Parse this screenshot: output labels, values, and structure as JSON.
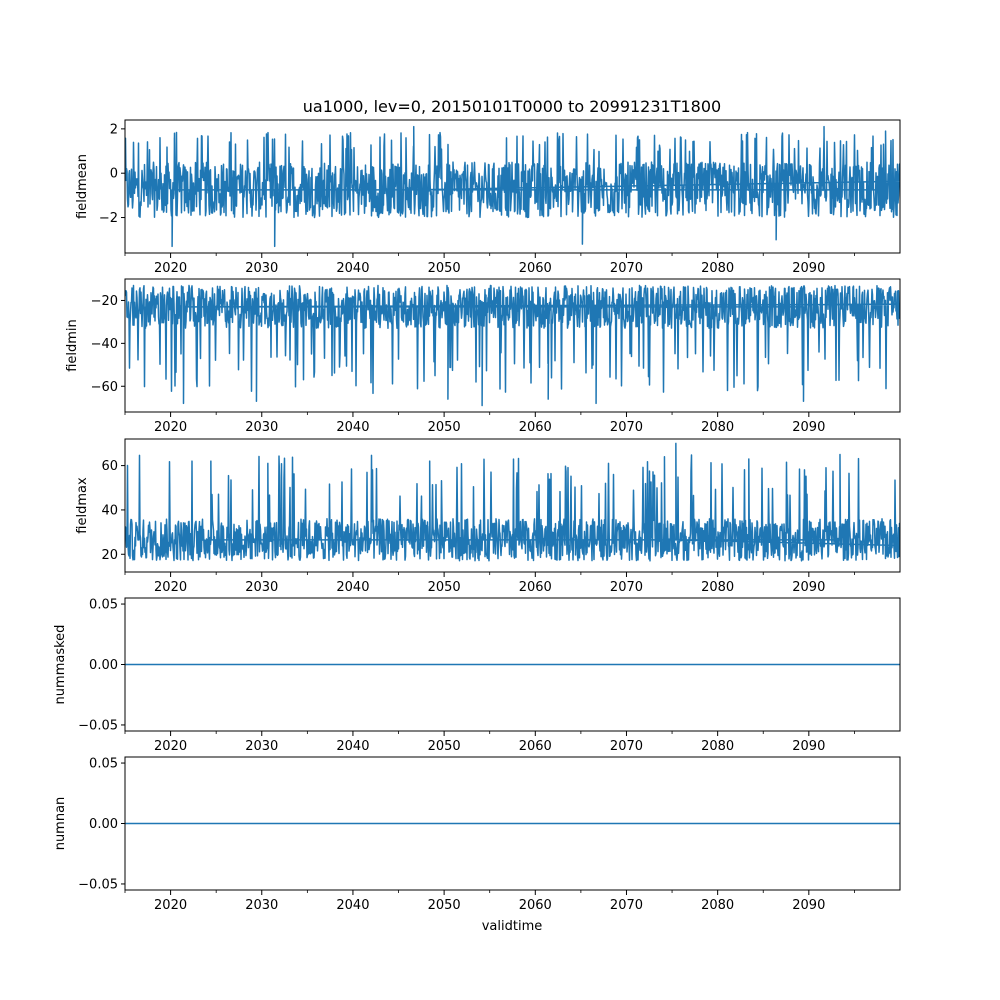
{
  "title": "ua1000, lev=0, 20150101T0000 to 20991231T1800",
  "xlabel": "validtime",
  "colors": {
    "series": "#1f77b4",
    "axes": "#000000",
    "background": "#ffffff"
  },
  "x_major_ticks": [
    "2020",
    "2030",
    "2040",
    "2050",
    "2060",
    "2070",
    "2080",
    "2090"
  ],
  "chart_data": [
    {
      "type": "line",
      "ylabel": "fieldmean",
      "xlim": [
        "2015-01-01T00:00",
        "2099-12-31T18:00"
      ],
      "ylim": [
        -3.6,
        2.4
      ],
      "yticks": [
        -2,
        0,
        2
      ],
      "ytick_labels": [
        "−2",
        "0",
        "2"
      ],
      "series": [
        {
          "values_summary": "dense noisy timeseries",
          "typical_low": -2.0,
          "typical_high": 0.5,
          "approx_min": -3.3,
          "approx_max": 2.1,
          "peaks": [
            [
              "2046-09",
              2.1
            ],
            [
              "2091-09",
              2.1
            ],
            [
              "2098-06",
              1.9
            ],
            [
              "2020-06",
              1.6
            ]
          ],
          "troughs": [
            [
              "2020-03",
              -3.3
            ],
            [
              "2031-06",
              -3.3
            ],
            [
              "2065-03",
              -3.2
            ],
            [
              "2086-06",
              -3.0
            ]
          ]
        }
      ]
    },
    {
      "type": "line",
      "ylabel": "fieldmin",
      "xlim": [
        "2015-01-01T00:00",
        "2099-12-31T18:00"
      ],
      "ylim": [
        -72,
        -10
      ],
      "yticks": [
        -60,
        -40,
        -20
      ],
      "ytick_labels": [
        "−60",
        "−40",
        "−20"
      ],
      "series": [
        {
          "values_summary": "dense noisy timeseries with frequent downward spikes",
          "typical_low": -33,
          "typical_high": -13,
          "approx_min": -69,
          "approx_max": -12,
          "troughs": [
            [
              "2021-06",
              -68
            ],
            [
              "2029-06",
              -67
            ],
            [
              "2050-06",
              -66
            ],
            [
              "2054-03",
              -69
            ],
            [
              "2061-06",
              -66
            ],
            [
              "2066-09",
              -68
            ],
            [
              "2089-06",
              -67
            ]
          ]
        }
      ]
    },
    {
      "type": "line",
      "ylabel": "fieldmax",
      "xlim": [
        "2015-01-01T00:00",
        "2099-12-31T18:00"
      ],
      "ylim": [
        12,
        72
      ],
      "yticks": [
        20,
        40,
        60
      ],
      "ytick_labels": [
        "20",
        "40",
        "60"
      ],
      "series": [
        {
          "values_summary": "dense noisy timeseries with frequent upward spikes",
          "typical_low": 17,
          "typical_high": 36,
          "approx_min": 14,
          "approx_max": 70,
          "peaks": [
            [
              "2075-06",
              70
            ],
            [
              "2074-03",
              64
            ],
            [
              "2093-06",
              65
            ],
            [
              "2048-06",
              62
            ],
            [
              "2024-06",
              62
            ],
            [
              "2030-09",
              61
            ],
            [
              "2083-06",
              63
            ]
          ]
        }
      ]
    },
    {
      "type": "line",
      "ylabel": "nummasked",
      "xlim": [
        "2015-01-01T00:00",
        "2099-12-31T18:00"
      ],
      "ylim": [
        -0.055,
        0.055
      ],
      "yticks": [
        -0.05,
        0,
        0.05
      ],
      "ytick_labels": [
        "−0.05",
        "0.00",
        "0.05"
      ],
      "series": [
        {
          "constant_value": 0
        }
      ]
    },
    {
      "type": "line",
      "ylabel": "numnan",
      "xlim": [
        "2015-01-01T00:00",
        "2099-12-31T18:00"
      ],
      "ylim": [
        -0.055,
        0.055
      ],
      "yticks": [
        -0.05,
        0,
        0.05
      ],
      "ytick_labels": [
        "−0.05",
        "0.00",
        "0.05"
      ],
      "series": [
        {
          "constant_value": 0
        }
      ]
    }
  ]
}
